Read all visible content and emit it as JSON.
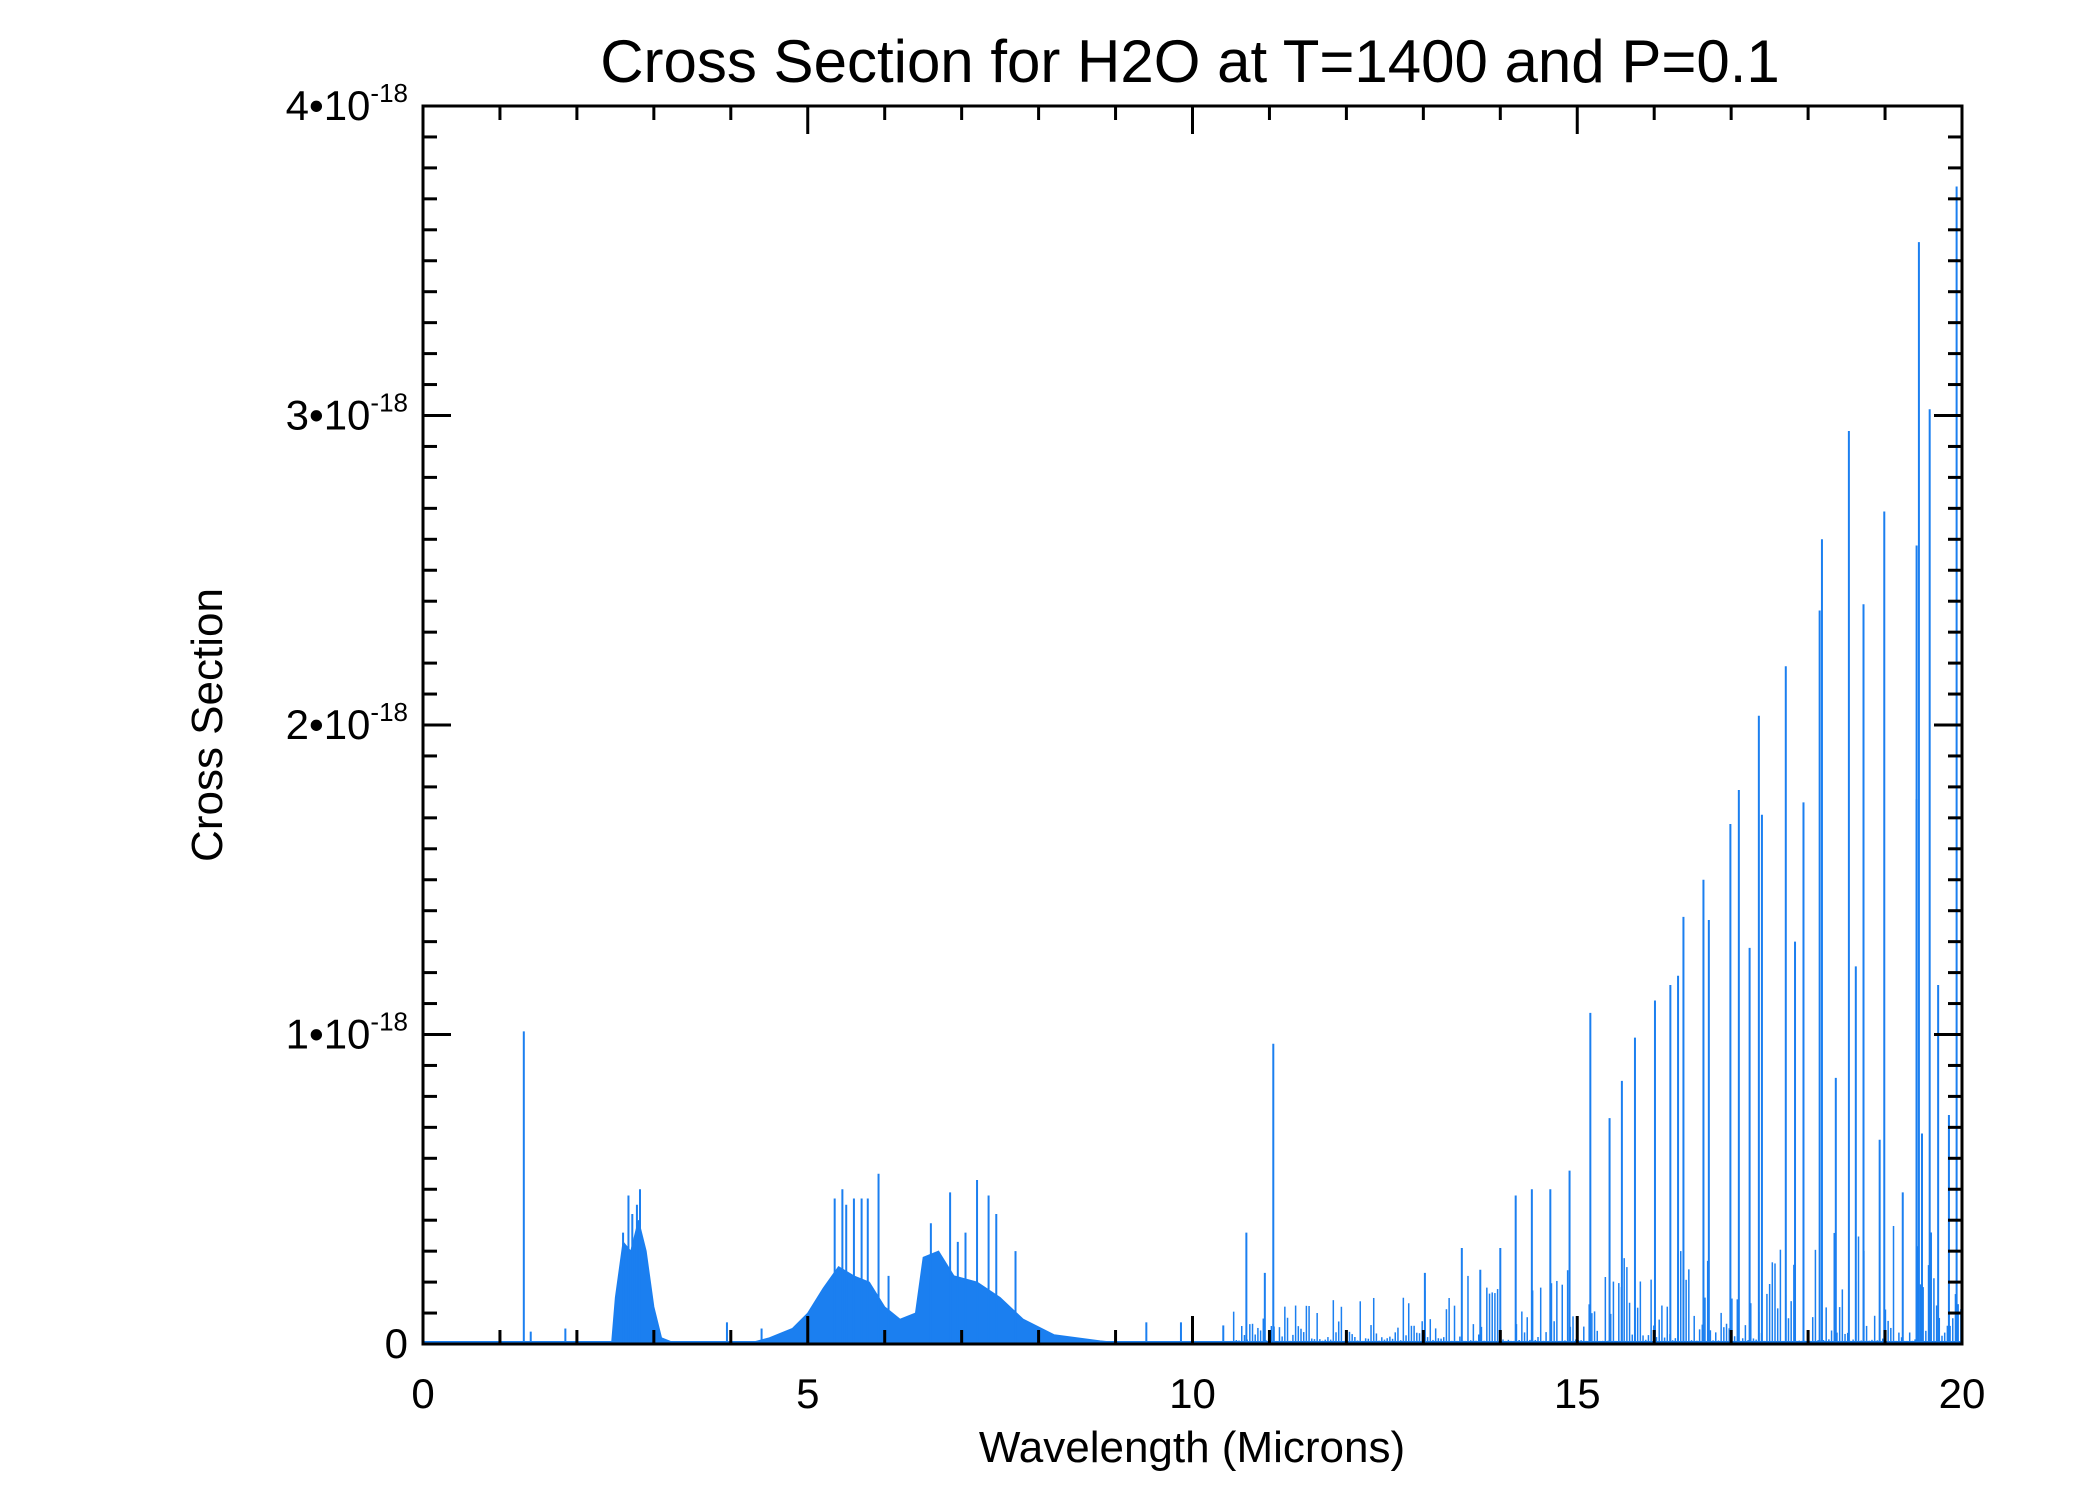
{
  "chart_data": {
    "type": "line",
    "title": "Cross Section for H2O at T=1400 and P=0.1",
    "xlabel": "Wavelength (Microns)",
    "ylabel": "Cross Section",
    "xlim": [
      0,
      20
    ],
    "ylim": [
      0,
      4e-18
    ],
    "y_unit_scale": 1e-18,
    "xticks": [
      0,
      5,
      10,
      15,
      20
    ],
    "xtick_labels": [
      "0",
      "5",
      "10",
      "15",
      "20"
    ],
    "x_minor_step": 1,
    "yticks": [
      0,
      1,
      2,
      3,
      4
    ],
    "ytick_labels": [
      {
        "main": "0",
        "exp": ""
      },
      {
        "main": "1•10",
        "exp": "-18"
      },
      {
        "main": "2•10",
        "exp": "-18"
      },
      {
        "main": "3•10",
        "exp": "-18"
      },
      {
        "main": "4•10",
        "exp": "-18"
      }
    ],
    "y_minor_step": 0.1,
    "grid": false,
    "series_color": "#1b7ff0",
    "band_envelopes": [
      [
        [
          2.45,
          0
        ],
        [
          2.5,
          0.15
        ],
        [
          2.6,
          0.33
        ],
        [
          2.7,
          0.3
        ],
        [
          2.8,
          0.4
        ],
        [
          2.9,
          0.3
        ],
        [
          3.0,
          0.12
        ],
        [
          3.1,
          0.02
        ],
        [
          3.3,
          0
        ]
      ],
      [
        [
          4.2,
          0
        ],
        [
          4.5,
          0.02
        ],
        [
          4.8,
          0.05
        ],
        [
          5.0,
          0.1
        ],
        [
          5.2,
          0.18
        ],
        [
          5.4,
          0.25
        ],
        [
          5.6,
          0.22
        ],
        [
          5.8,
          0.2
        ],
        [
          6.0,
          0.12
        ],
        [
          6.2,
          0.08
        ],
        [
          6.4,
          0.1
        ],
        [
          6.5,
          0.28
        ],
        [
          6.7,
          0.3
        ],
        [
          6.9,
          0.22
        ],
        [
          7.2,
          0.2
        ],
        [
          7.5,
          0.15
        ],
        [
          7.8,
          0.08
        ],
        [
          8.2,
          0.03
        ],
        [
          8.8,
          0.01
        ],
        [
          9.2,
          0
        ]
      ]
    ],
    "lines": [
      [
        1.31,
        1.01
      ],
      [
        1.4,
        0.04
      ],
      [
        1.85,
        0.05
      ],
      [
        2.0,
        0.04
      ],
      [
        2.6,
        0.36
      ],
      [
        2.67,
        0.48
      ],
      [
        2.72,
        0.42
      ],
      [
        2.78,
        0.45
      ],
      [
        2.82,
        0.5
      ],
      [
        3.95,
        0.07
      ],
      [
        4.4,
        0.05
      ],
      [
        5.35,
        0.47
      ],
      [
        5.45,
        0.5
      ],
      [
        5.5,
        0.45
      ],
      [
        5.6,
        0.47
      ],
      [
        5.7,
        0.47
      ],
      [
        5.78,
        0.47
      ],
      [
        5.92,
        0.55
      ],
      [
        6.05,
        0.22
      ],
      [
        6.6,
        0.39
      ],
      [
        6.85,
        0.49
      ],
      [
        6.95,
        0.33
      ],
      [
        7.05,
        0.36
      ],
      [
        7.2,
        0.53
      ],
      [
        7.35,
        0.48
      ],
      [
        7.45,
        0.42
      ],
      [
        7.7,
        0.3
      ],
      [
        9.4,
        0.07
      ],
      [
        9.85,
        0.07
      ],
      [
        10.4,
        0.06
      ],
      [
        10.7,
        0.36
      ],
      [
        10.94,
        0.23
      ],
      [
        11.05,
        0.97
      ],
      [
        13.02,
        0.23
      ],
      [
        13.5,
        0.31
      ],
      [
        13.74,
        0.24
      ],
      [
        14.0,
        0.31
      ],
      [
        14.2,
        0.48
      ],
      [
        14.41,
        0.5
      ],
      [
        14.65,
        0.5
      ],
      [
        14.9,
        0.56
      ],
      [
        15.17,
        1.07
      ],
      [
        15.42,
        0.73
      ],
      [
        15.58,
        0.85
      ],
      [
        15.75,
        0.99
      ],
      [
        16.01,
        1.11
      ],
      [
        16.21,
        1.16
      ],
      [
        16.31,
        1.19
      ],
      [
        16.38,
        1.38
      ],
      [
        16.64,
        1.5
      ],
      [
        16.71,
        1.37
      ],
      [
        16.99,
        1.68
      ],
      [
        17.1,
        1.79
      ],
      [
        17.24,
        1.28
      ],
      [
        17.36,
        2.03
      ],
      [
        17.4,
        1.71
      ],
      [
        17.71,
        2.19
      ],
      [
        17.83,
        1.3
      ],
      [
        17.94,
        1.75
      ],
      [
        18.15,
        2.37
      ],
      [
        18.18,
        2.6
      ],
      [
        18.36,
        0.86
      ],
      [
        18.53,
        2.95
      ],
      [
        18.62,
        1.22
      ],
      [
        18.72,
        2.39
      ],
      [
        18.93,
        0.66
      ],
      [
        18.99,
        2.69
      ],
      [
        19.23,
        0.49
      ],
      [
        19.41,
        2.58
      ],
      [
        19.41,
        1.76
      ],
      [
        19.44,
        3.56
      ],
      [
        19.48,
        0.68
      ],
      [
        19.58,
        3.02
      ],
      [
        19.69,
        1.16
      ],
      [
        19.83,
        0.74
      ],
      [
        19.93,
        3.74
      ]
    ]
  }
}
